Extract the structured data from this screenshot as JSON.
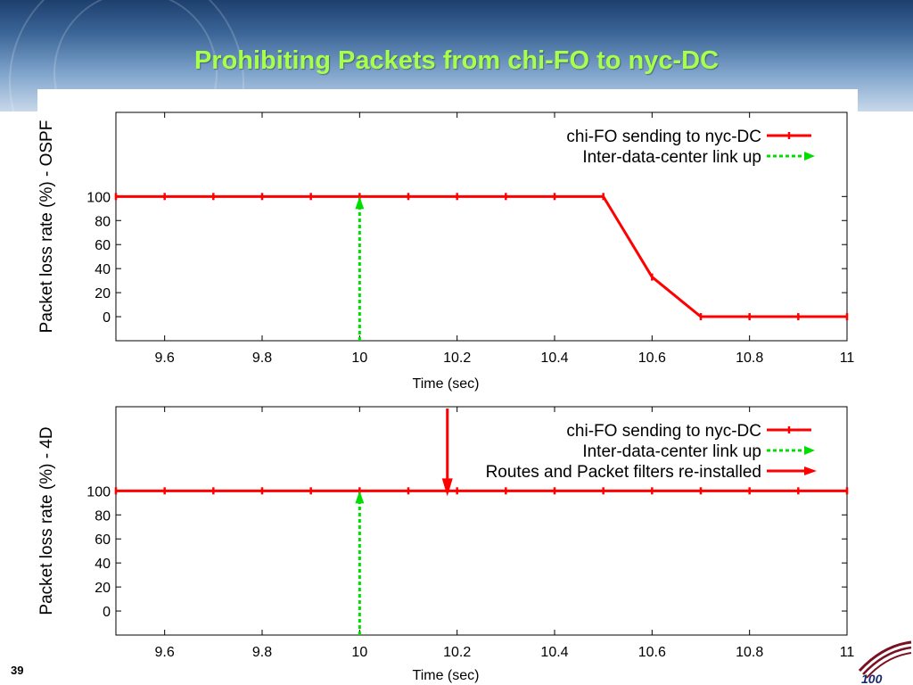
{
  "slide": {
    "title": "Prohibiting Packets from chi-FO to nyc-DC",
    "page_number": "39",
    "logo_text": "100"
  },
  "colors": {
    "title": "#a6ff4d",
    "series_red": "#ff0000",
    "series_green": "#00dd00",
    "axis": "#000000"
  },
  "chart_data": [
    {
      "type": "line",
      "title": "",
      "xlabel": "Time (sec)",
      "ylabel": "Packet loss rate (%) - OSPF",
      "xlim": [
        9.5,
        11
      ],
      "ylim": [
        -20,
        170
      ],
      "xticks": [
        9.6,
        9.8,
        10,
        10.2,
        10.4,
        10.6,
        10.8,
        11
      ],
      "xtick_labels": [
        "9.6",
        "9.8",
        "10",
        "10.2",
        "10.4",
        "10.6",
        "10.8",
        "11"
      ],
      "yticks": [
        0,
        20,
        40,
        60,
        80,
        100
      ],
      "ytick_labels": [
        "0",
        "20",
        "40",
        "60",
        "80",
        "100"
      ],
      "grid": false,
      "legend_position": "top-right",
      "series": [
        {
          "name": "chi-FO sending to nyc-DC",
          "style": "line-points",
          "color": "#ff0000",
          "x": [
            9.5,
            9.6,
            9.7,
            9.8,
            9.9,
            10.0,
            10.1,
            10.2,
            10.3,
            10.4,
            10.5,
            10.6,
            10.7,
            10.8,
            10.9,
            11.0
          ],
          "y": [
            100,
            100,
            100,
            100,
            100,
            100,
            100,
            100,
            100,
            100,
            100,
            33,
            0,
            0,
            0,
            0
          ]
        },
        {
          "name": "Inter-data-center link up",
          "style": "dashed-vertical-arrow",
          "color": "#00dd00",
          "x": 10.0,
          "y_from": -20,
          "y_to": 100
        }
      ]
    },
    {
      "type": "line",
      "title": "",
      "xlabel": "Time (sec)",
      "ylabel": "Packet loss rate (%) - 4D",
      "xlim": [
        9.5,
        11
      ],
      "ylim": [
        -20,
        170
      ],
      "xticks": [
        9.6,
        9.8,
        10,
        10.2,
        10.4,
        10.6,
        10.8,
        11
      ],
      "xtick_labels": [
        "9.6",
        "9.8",
        "10",
        "10.2",
        "10.4",
        "10.6",
        "10.8",
        "11"
      ],
      "yticks": [
        0,
        20,
        40,
        60,
        80,
        100
      ],
      "ytick_labels": [
        "0",
        "20",
        "40",
        "60",
        "80",
        "100"
      ],
      "grid": false,
      "legend_position": "top-right",
      "series": [
        {
          "name": "chi-FO sending to nyc-DC",
          "style": "line-points",
          "color": "#ff0000",
          "x": [
            9.5,
            9.6,
            9.7,
            9.8,
            9.9,
            10.0,
            10.1,
            10.2,
            10.3,
            10.4,
            10.5,
            10.6,
            10.7,
            10.8,
            10.9,
            11.0
          ],
          "y": [
            100,
            100,
            100,
            100,
            100,
            100,
            100,
            100,
            100,
            100,
            100,
            100,
            100,
            100,
            100,
            100
          ]
        },
        {
          "name": "Inter-data-center link up",
          "style": "dashed-vertical-arrow",
          "color": "#00dd00",
          "x": 10.0,
          "y_from": -20,
          "y_to": 100
        },
        {
          "name": "Routes and Packet filters re-installed",
          "style": "solid-vertical-arrow",
          "color": "#ff0000",
          "x": 10.18,
          "y_from": 170,
          "y_to": 100
        }
      ]
    }
  ]
}
